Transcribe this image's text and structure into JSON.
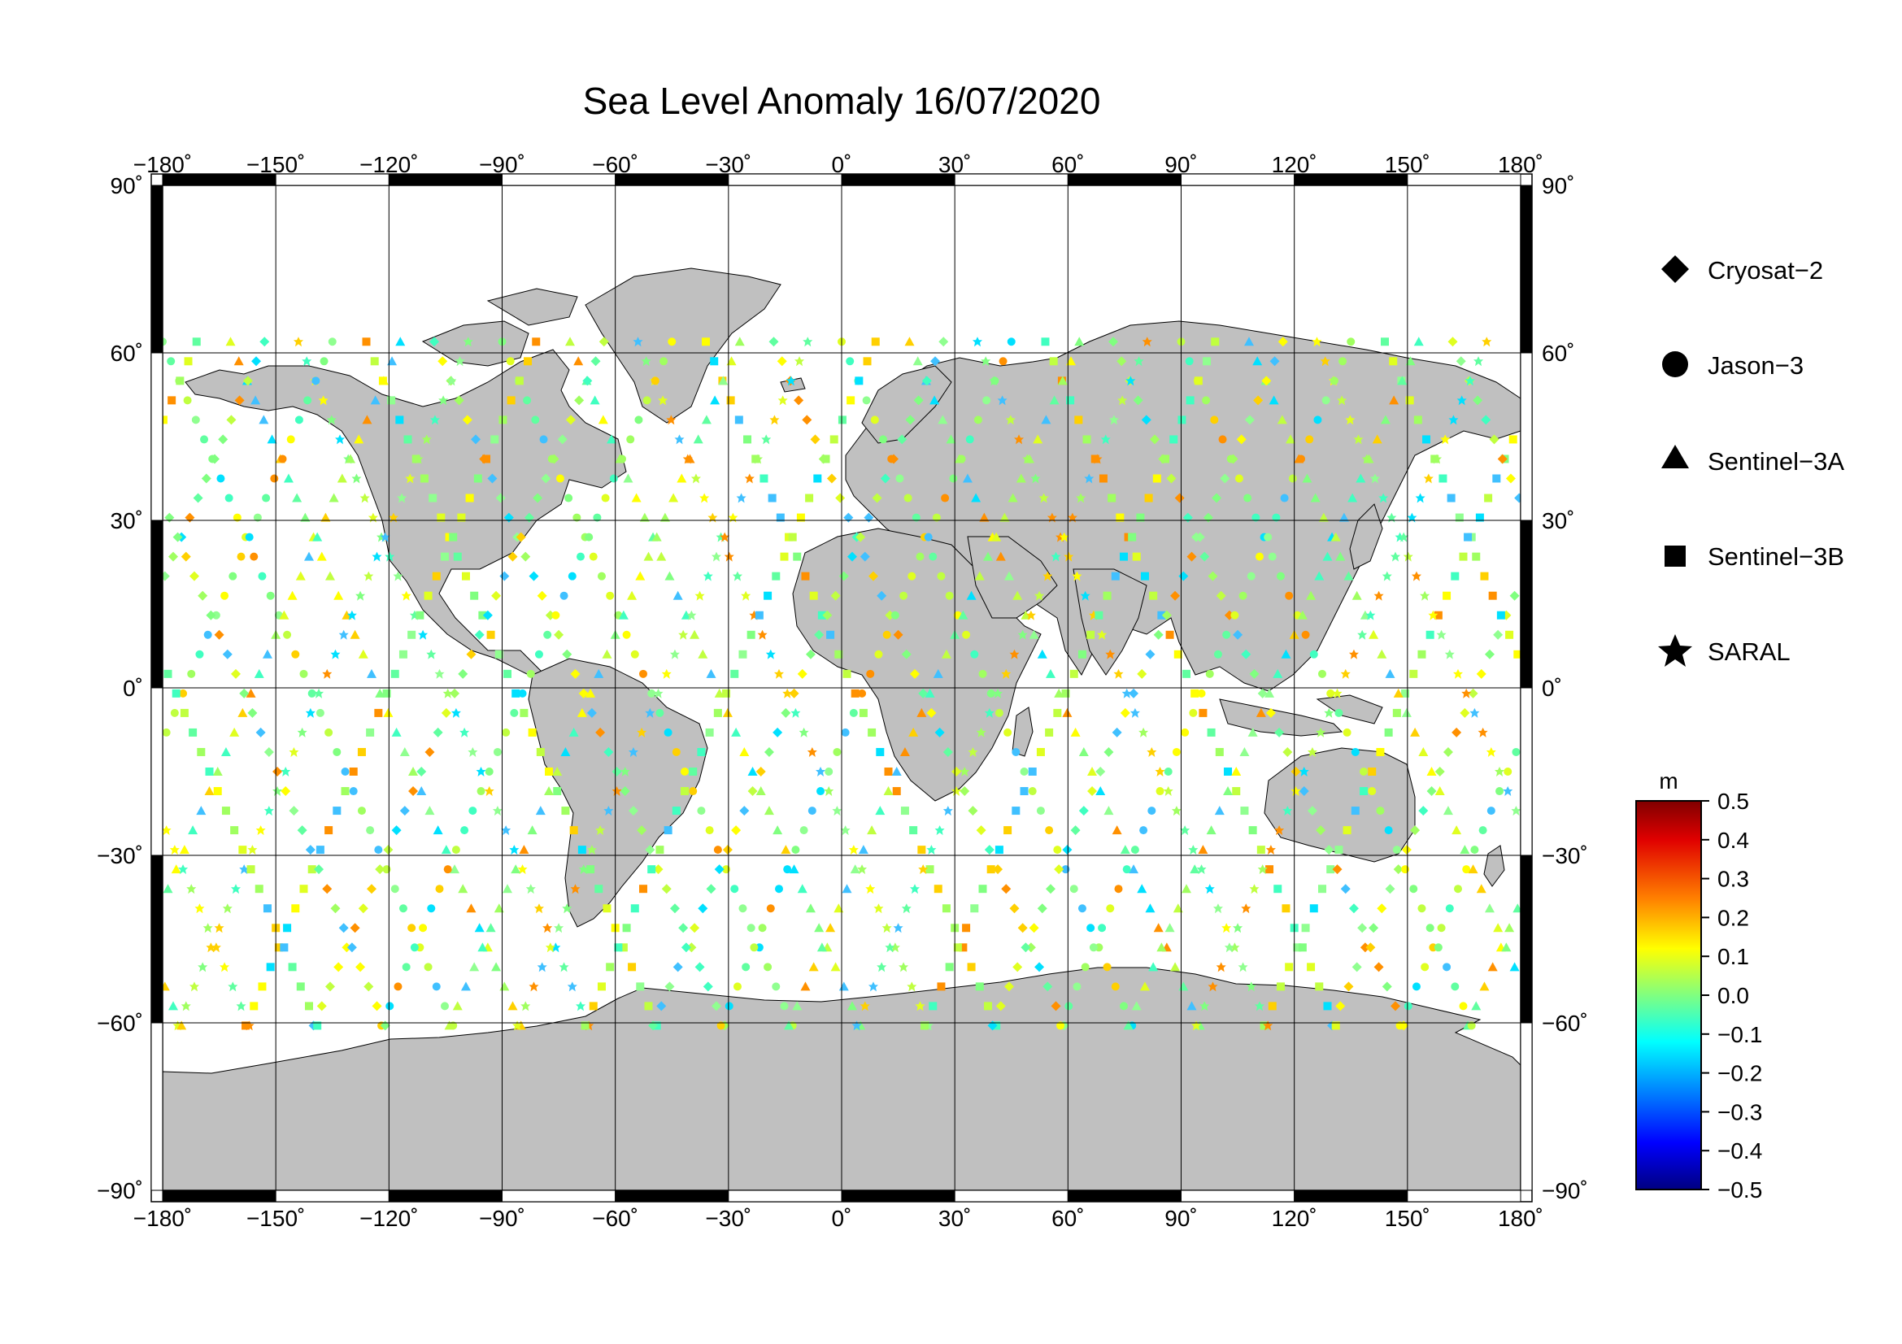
{
  "title": "Sea Level Anomaly 16/07/2020",
  "map": {
    "lon_ticks": [
      "−180˚",
      "−150˚",
      "−120˚",
      "−90˚",
      "−60˚",
      "−30˚",
      "0˚",
      "30˚",
      "60˚",
      "90˚",
      "120˚",
      "150˚",
      "180˚"
    ],
    "lat_ticks_left": [
      "90˚",
      "60˚",
      "30˚",
      "0˚",
      "−30˚",
      "−60˚",
      "−90˚"
    ],
    "lat_ticks_right": [
      "90˚",
      "60˚",
      "30˚",
      "0˚",
      "−30˚",
      "−60˚",
      "−90˚"
    ],
    "land_color": "#c0c0c0",
    "ocean_color": "#ffffff",
    "grid": true
  },
  "legend": {
    "items": [
      {
        "label": "Cryosat−2",
        "symbol": "diamond-icon"
      },
      {
        "label": "Jason−3",
        "symbol": "circle-icon"
      },
      {
        "label": "Sentinel−3A",
        "symbol": "triangle-icon"
      },
      {
        "label": "Sentinel−3B",
        "symbol": "square-icon"
      },
      {
        "label": "SARAL",
        "symbol": "star-icon"
      }
    ]
  },
  "colorbar": {
    "unit": "m",
    "tick_labels": [
      "0.5",
      "0.4",
      "0.3",
      "0.2",
      "0.1",
      "0.0",
      "−0.1",
      "−0.2",
      "−0.3",
      "−0.4",
      "−0.5"
    ],
    "range": [
      -0.5,
      0.5
    ]
  }
}
